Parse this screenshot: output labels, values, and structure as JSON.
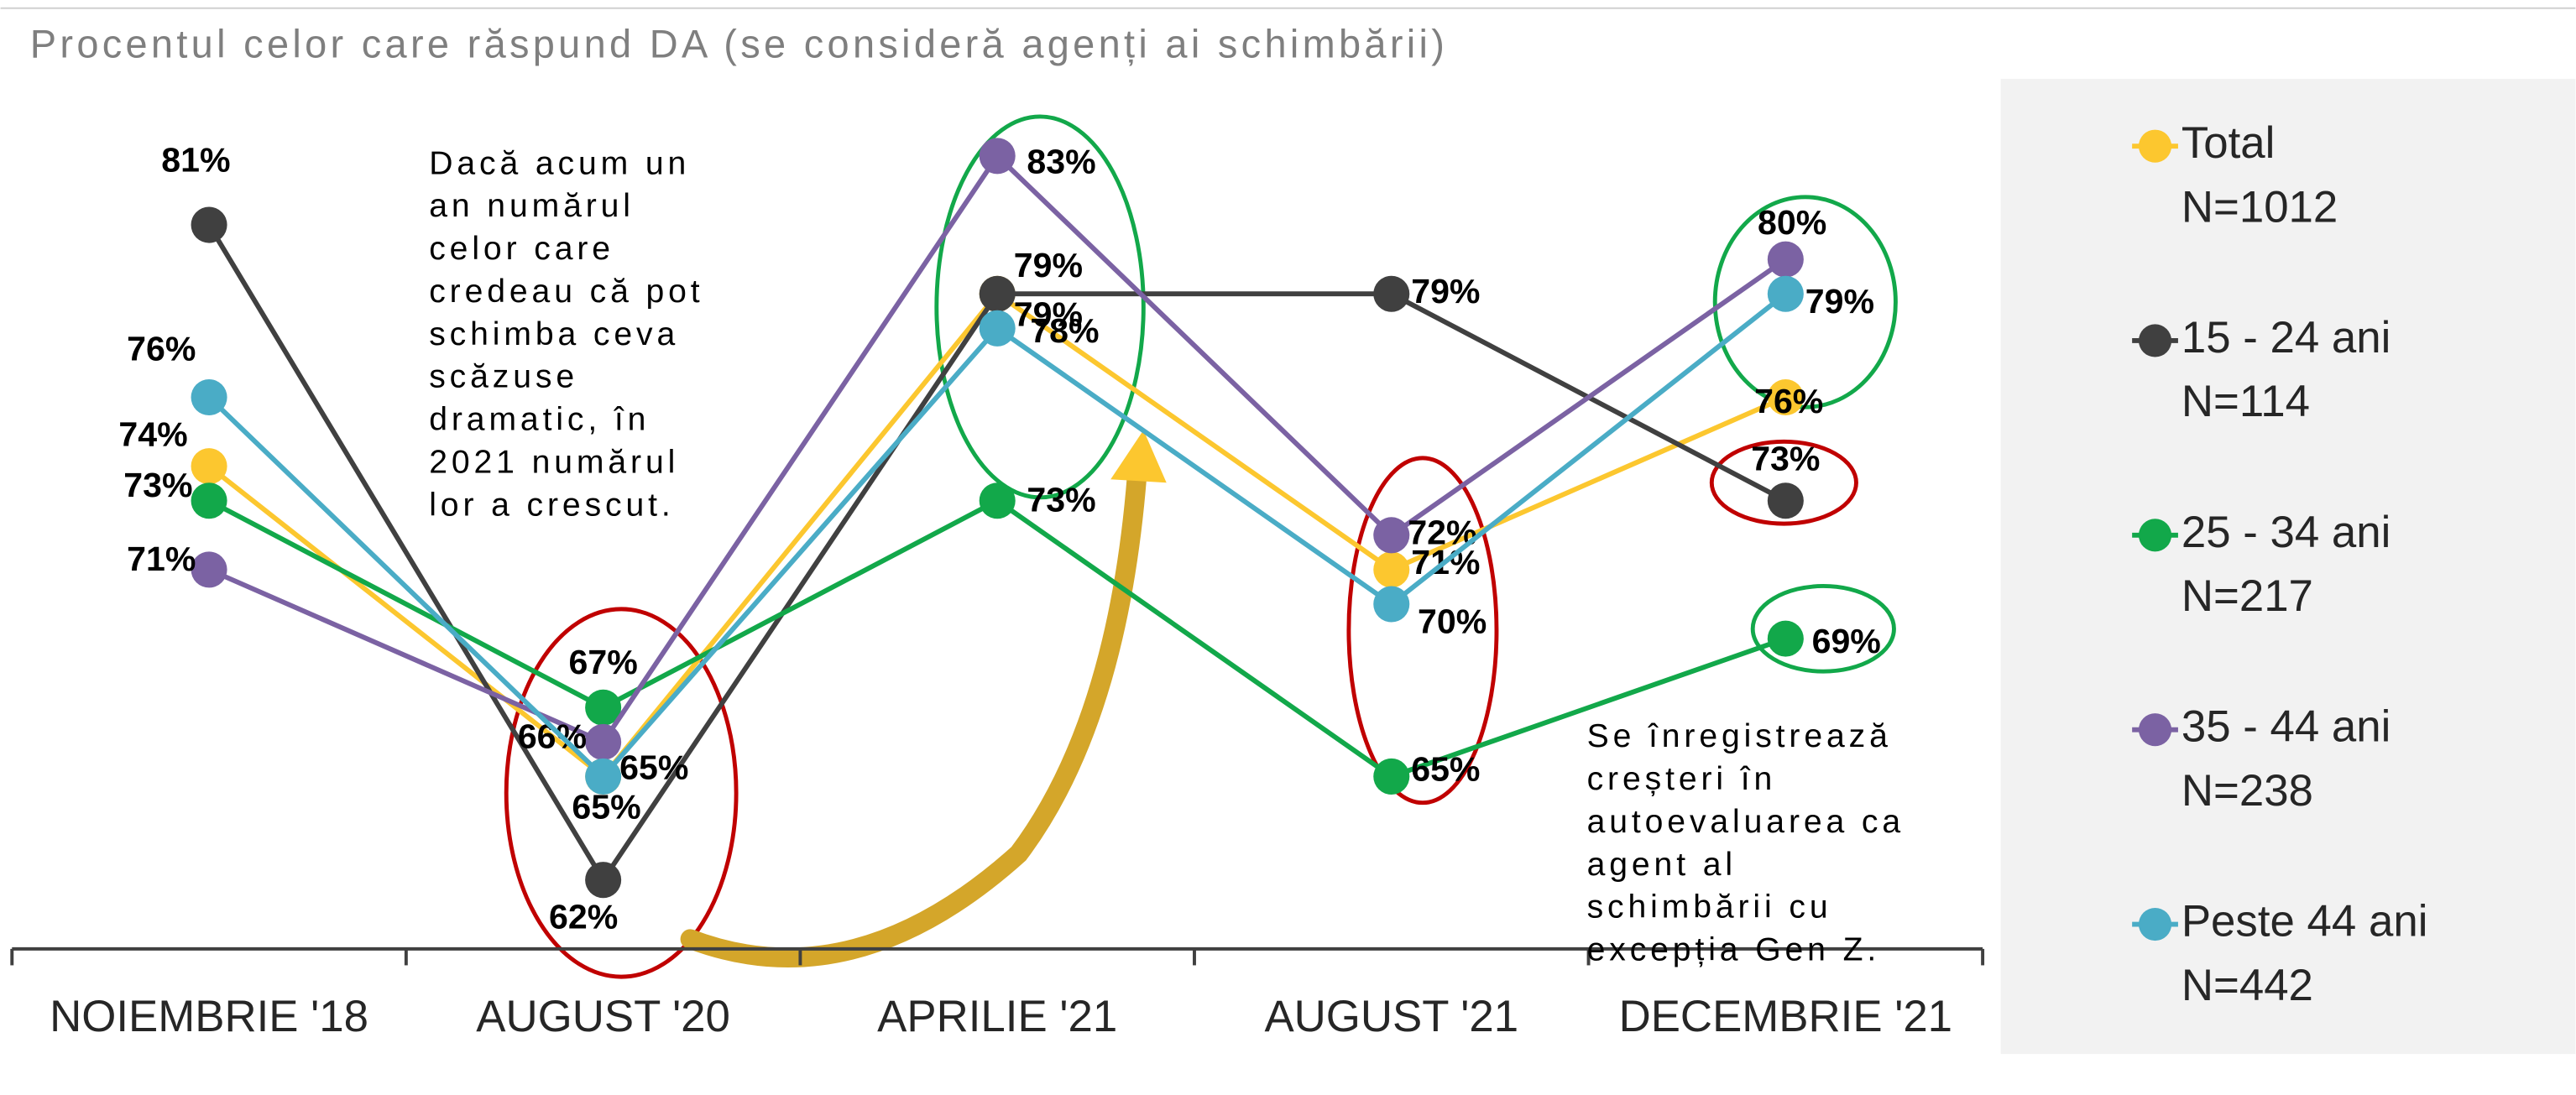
{
  "chart_data": {
    "type": "line",
    "title": "Procentul celor care răspund DA (se consideră agenți ai schimbării)",
    "categories": [
      "NOIEMBRIE '18",
      "AUGUST '20",
      "APRILIE '21",
      "AUGUST '21",
      "DECEMBRIE '21"
    ],
    "ylim": [
      60,
      85
    ],
    "series": [
      {
        "name": "Total",
        "sample": "N=1012",
        "color": "#FCC72F",
        "values": [
          74,
          65,
          79,
          71,
          76
        ],
        "value_labels": [
          "74%",
          "65%",
          "79%",
          "71%",
          "76%"
        ]
      },
      {
        "name": "15 - 24 ani",
        "sample": "N=114",
        "color": "#404040",
        "values": [
          81,
          62,
          79,
          79,
          73
        ],
        "value_labels": [
          "81%",
          "62%",
          "79%",
          "79%",
          "73%"
        ]
      },
      {
        "name": "25 - 34 ani",
        "sample": "N=217",
        "color": "#12A84A",
        "values": [
          73,
          67,
          73,
          65,
          69
        ],
        "value_labels": [
          "73%",
          "67%",
          "73%",
          "65%",
          "69%"
        ]
      },
      {
        "name": "35 - 44 ani",
        "sample": "N=238",
        "color": "#7B62A3",
        "values": [
          71,
          66,
          83,
          72,
          80
        ],
        "value_labels": [
          "71%",
          "66%",
          "83%",
          "72%",
          "80%"
        ]
      },
      {
        "name": "Peste 44 ani",
        "sample": "N=442",
        "color": "#4AACC6",
        "values": [
          76,
          65,
          78,
          70,
          79
        ],
        "value_labels": [
          "76%",
          "65%",
          "78%",
          "70%",
          "79%"
        ]
      }
    ],
    "annotations": [
      [
        "Dacă acum un",
        "an numărul",
        "celor care",
        "credeau că pot",
        "schimba ceva",
        "scăzuse",
        "dramatic, în",
        "2021 numărul",
        "lor a crescut."
      ],
      [
        "Se înregistrează",
        "creșteri în",
        "autoevaluarea ca",
        "agent al",
        "schimbării cu",
        "excepția Gen Z."
      ]
    ]
  }
}
